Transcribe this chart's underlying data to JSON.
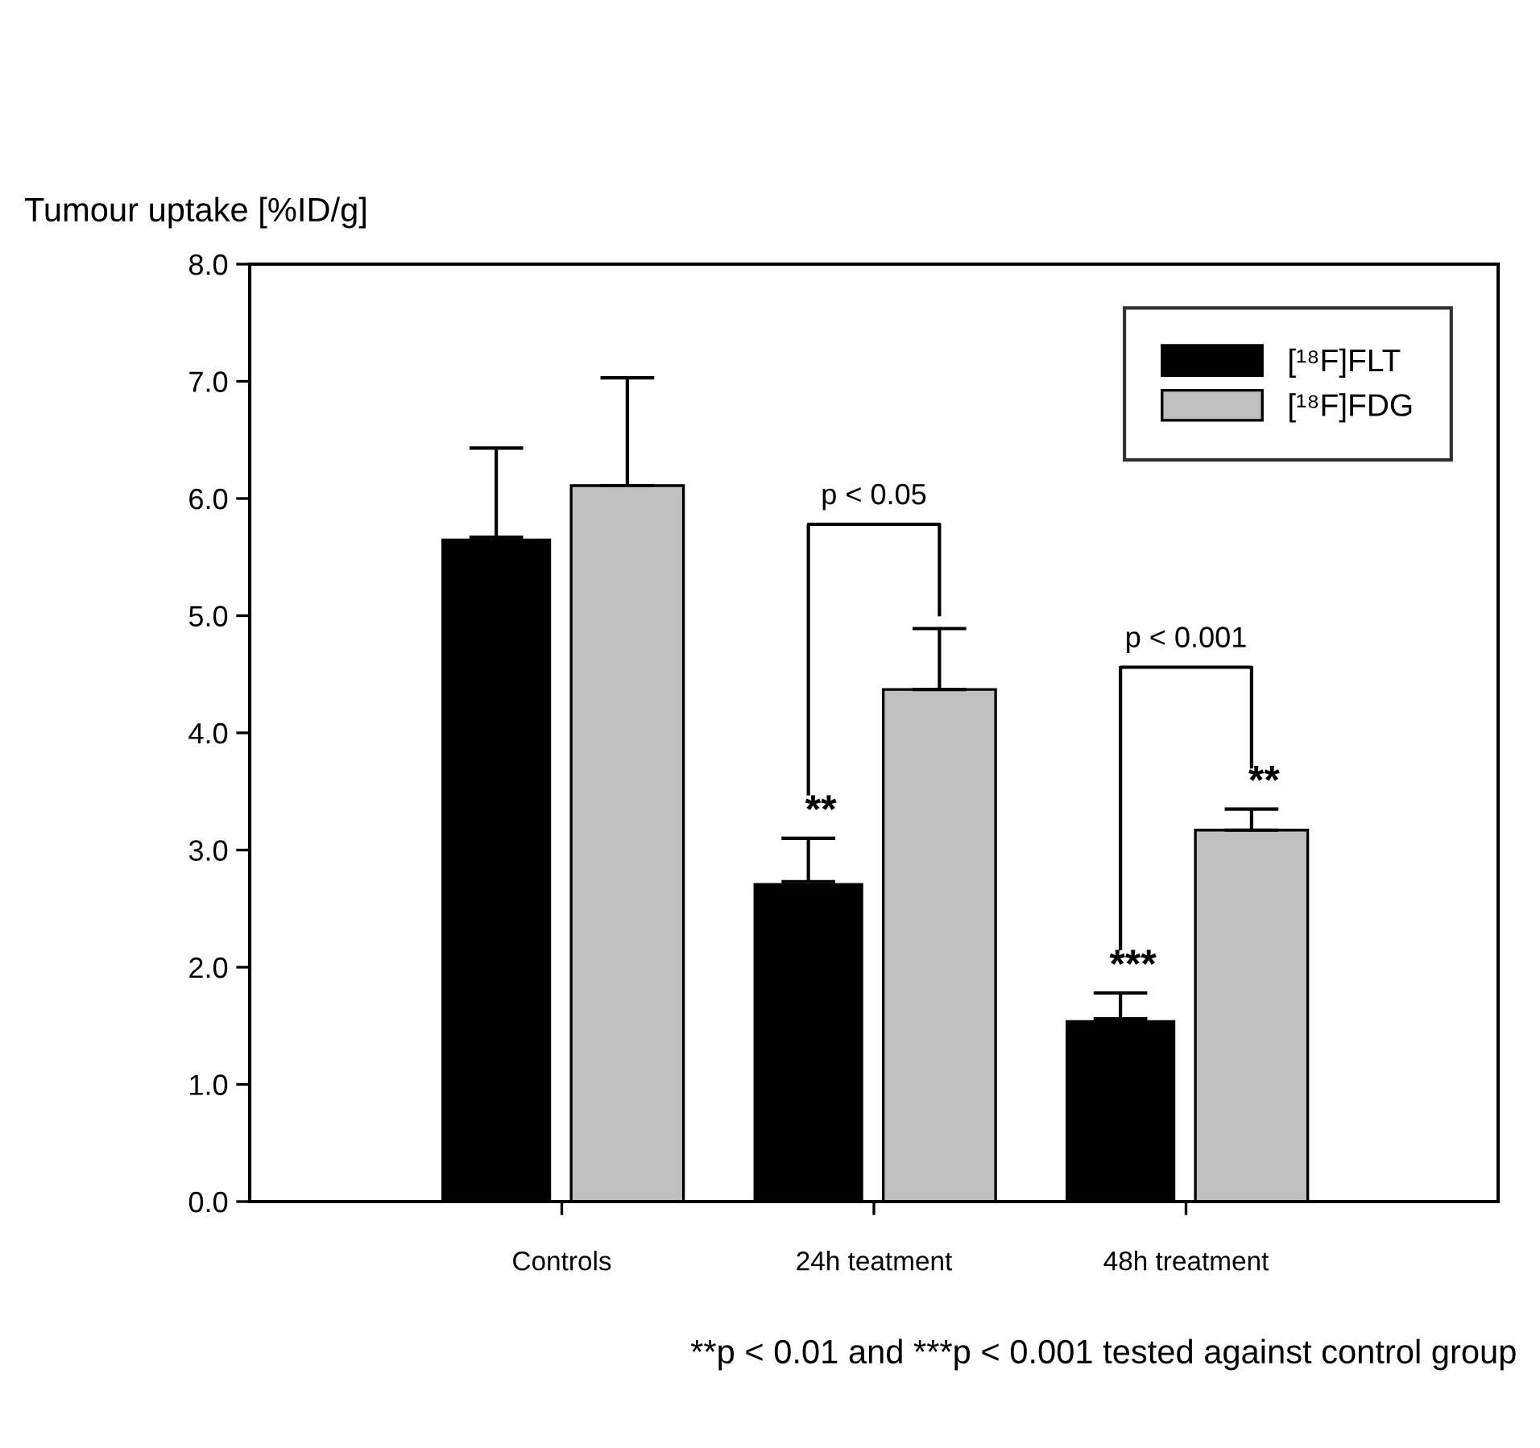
{
  "chart_data": {
    "type": "bar",
    "ylabel": "Tumour uptake [%ID/g]",
    "categories": [
      "Controls",
      "24h teatment",
      "48h treatment"
    ],
    "series": [
      {
        "name": "[¹⁸F]FLT",
        "color": "#000000",
        "values": [
          5.67,
          2.73,
          1.56
        ],
        "errors": [
          0.76,
          0.37,
          0.22
        ]
      },
      {
        "name": "[¹⁸F]FDG",
        "color": "#c0c0c0",
        "values": [
          6.11,
          4.37,
          3.17
        ],
        "errors": [
          0.92,
          0.52,
          0.18
        ]
      }
    ],
    "ylim": [
      0,
      8
    ],
    "yticks": [
      {
        "value": 0,
        "label": "0.0"
      },
      {
        "value": 1,
        "label": "1.0"
      },
      {
        "value": 2,
        "label": "2.0"
      },
      {
        "value": 3,
        "label": "3.0"
      },
      {
        "value": 4,
        "label": "4.0"
      },
      {
        "value": 5,
        "label": "5.0"
      },
      {
        "value": 6,
        "label": "6.0"
      },
      {
        "value": 7,
        "label": "7.0"
      },
      {
        "value": 8,
        "label": "8.0"
      }
    ],
    "legend": "top right",
    "grid": false,
    "annotations": [
      "p < 0.05",
      "p < 0.001",
      "**",
      "***",
      "**",
      "**p < 0.01 and ***p < 0.001 tested against control group"
    ]
  }
}
